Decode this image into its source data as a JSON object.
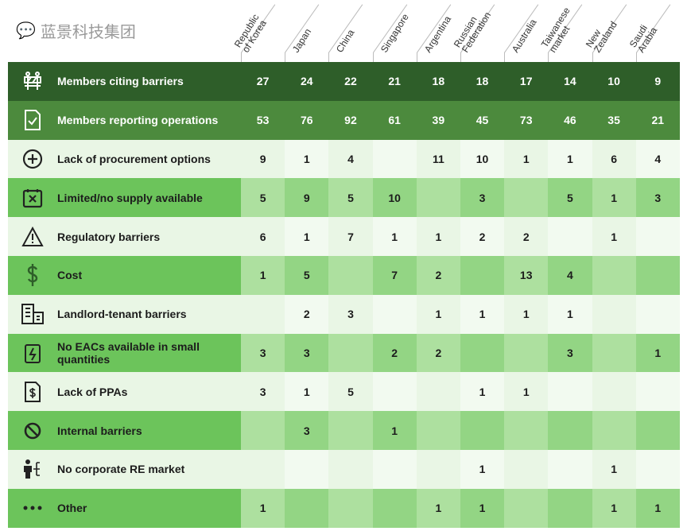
{
  "chart_data": {
    "type": "table",
    "columns": [
      "Republic\nof Korea",
      "Japan",
      "China",
      "Singapore",
      "Argentina",
      "Russian\nFederation",
      "Australia",
      "Taiwanese\nmarket",
      "New\nZealand",
      "Saudi\nArabia"
    ],
    "rows": [
      {
        "label": "Members citing barriers",
        "icon": "barricade-icon",
        "style": "dark1",
        "values": [
          "27",
          "24",
          "22",
          "21",
          "18",
          "18",
          "17",
          "14",
          "10",
          "9"
        ]
      },
      {
        "label": "Members reporting operations",
        "icon": "document-check-icon",
        "style": "dark2",
        "values": [
          "53",
          "76",
          "92",
          "61",
          "39",
          "45",
          "73",
          "46",
          "35",
          "21"
        ]
      },
      {
        "label": "Lack of procurement options",
        "icon": "plus-circle-icon",
        "style": "light",
        "values": [
          "9",
          "1",
          "4",
          "",
          "11",
          "10",
          "1",
          "1",
          "6",
          "4"
        ]
      },
      {
        "label": "Limited/no supply available",
        "icon": "calendar-x-icon",
        "style": "med",
        "values": [
          "5",
          "9",
          "5",
          "10",
          "",
          "3",
          "",
          "5",
          "1",
          "3"
        ]
      },
      {
        "label": "Regulatory barriers",
        "icon": "warning-icon",
        "style": "light",
        "values": [
          "6",
          "1",
          "7",
          "1",
          "1",
          "2",
          "2",
          "",
          "1",
          ""
        ]
      },
      {
        "label": "Cost",
        "icon": "dollar-icon",
        "style": "med",
        "values": [
          "1",
          "5",
          "",
          "7",
          "2",
          "",
          "13",
          "4",
          "",
          ""
        ]
      },
      {
        "label": "Landlord-tenant barriers",
        "icon": "building-icon",
        "style": "light",
        "values": [
          "",
          "2",
          "3",
          "",
          "1",
          "1",
          "1",
          "1",
          "",
          ""
        ]
      },
      {
        "label": "No EACs available in small quantities",
        "icon": "battery-bolt-icon",
        "style": "med",
        "values": [
          "3",
          "3",
          "",
          "2",
          "2",
          "",
          "",
          "3",
          "",
          "1"
        ]
      },
      {
        "label": "Lack of PPAs",
        "icon": "dollar-document-icon",
        "style": "light",
        "values": [
          "3",
          "1",
          "5",
          "",
          "",
          "1",
          "1",
          "",
          "",
          ""
        ]
      },
      {
        "label": "Internal barriers",
        "icon": "prohibited-icon",
        "style": "med",
        "values": [
          "",
          "3",
          "",
          "1",
          "",
          "",
          "",
          "",
          "",
          ""
        ]
      },
      {
        "label": "No corporate RE market",
        "icon": "person-network-icon",
        "style": "light",
        "values": [
          "",
          "",
          "",
          "",
          "",
          "1",
          "",
          "",
          "1",
          ""
        ]
      },
      {
        "label": "Other",
        "icon": "ellipsis-icon",
        "style": "med",
        "values": [
          "1",
          "",
          "",
          "",
          "1",
          "1",
          "",
          "",
          "1",
          "1"
        ]
      }
    ]
  },
  "watermark": "蓝景科技集团"
}
